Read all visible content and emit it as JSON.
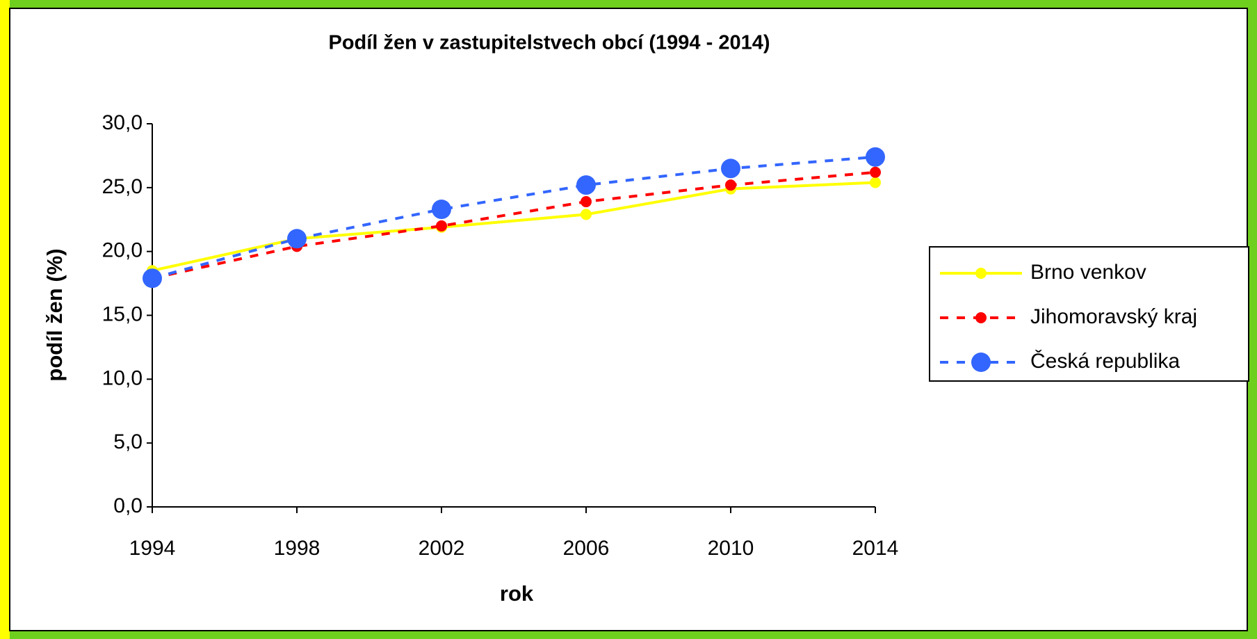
{
  "chart_data": {
    "type": "line",
    "title": "Podíl žen v zastupitelstvech obcí (1994 - 2014)",
    "x_label": "rok",
    "y_label": "podíl žen (%)",
    "x": [
      1994,
      1998,
      2002,
      2006,
      2010,
      2014
    ],
    "xlim": [
      1994,
      2014
    ],
    "xticks": [
      1994,
      1998,
      2002,
      2006,
      2010,
      2014
    ],
    "ylim": [
      0,
      30
    ],
    "yticks": [
      {
        "value": 0,
        "label": "0,0"
      },
      {
        "value": 5,
        "label": "5,0"
      },
      {
        "value": 10,
        "label": "10,0"
      },
      {
        "value": 15,
        "label": "15,0"
      },
      {
        "value": 20,
        "label": "20,0"
      },
      {
        "value": 25,
        "label": "25,0"
      },
      {
        "value": 30,
        "label": "30,0"
      }
    ],
    "grid": false,
    "legend": "right",
    "series": [
      {
        "name": "Brno venkov",
        "color": "#ffff00",
        "values": [
          18.5,
          21.0,
          21.9,
          22.9,
          24.9,
          25.4
        ]
      },
      {
        "name": "Jihomoravský kraj",
        "color": "#ff0000",
        "values": [
          17.9,
          20.4,
          22.0,
          23.9,
          25.2,
          26.2
        ]
      },
      {
        "name": "Česká republika",
        "color": "#3366ff",
        "values": [
          17.9,
          21.0,
          23.3,
          25.2,
          26.5,
          27.4
        ]
      }
    ]
  }
}
